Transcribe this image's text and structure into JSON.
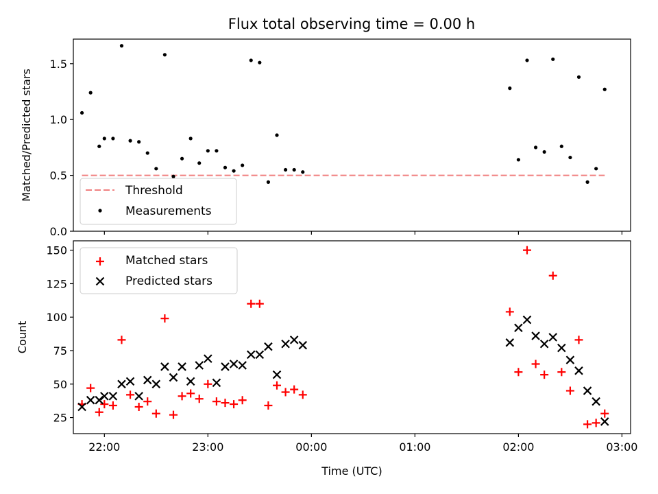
{
  "chart_data": [
    {
      "type": "scatter",
      "title": "Flux total observing time = 0.00 h",
      "ylabel": "Matched/Predicted stars",
      "xlabel": "",
      "ylim": [
        0,
        1.72
      ],
      "yticks": [
        0.0,
        0.5,
        1.0,
        1.5
      ],
      "ytick_labels": [
        "0.0",
        "0.5",
        "1.0",
        "1.5"
      ],
      "xrange": [
        "21:42",
        "03:05"
      ],
      "xticks": [
        "22:00",
        "23:00",
        "00:00",
        "01:00",
        "02:00",
        "03:00"
      ],
      "xtick_labels": [],
      "grid": false,
      "legend_position": "lower-left",
      "threshold": {
        "name": "Threshold",
        "value": 0.5,
        "x_start": "21:47",
        "x_end": "02:50",
        "color": "#f08080",
        "style": "dashed"
      },
      "series": [
        {
          "name": "Measurements",
          "color": "#000000",
          "marker": "dot",
          "points": [
            [
              "21:47",
              1.06
            ],
            [
              "21:52",
              1.24
            ],
            [
              "21:57",
              0.76
            ],
            [
              "22:00",
              0.83
            ],
            [
              "22:05",
              0.83
            ],
            [
              "22:10",
              1.66
            ],
            [
              "22:15",
              0.81
            ],
            [
              "22:20",
              0.8
            ],
            [
              "22:25",
              0.7
            ],
            [
              "22:30",
              0.56
            ],
            [
              "22:35",
              1.58
            ],
            [
              "22:40",
              0.49
            ],
            [
              "22:45",
              0.65
            ],
            [
              "22:50",
              0.83
            ],
            [
              "22:55",
              0.61
            ],
            [
              "23:00",
              0.72
            ],
            [
              "23:05",
              0.72
            ],
            [
              "23:10",
              0.57
            ],
            [
              "23:15",
              0.54
            ],
            [
              "23:20",
              0.59
            ],
            [
              "23:25",
              1.53
            ],
            [
              "23:30",
              1.51
            ],
            [
              "23:35",
              0.44
            ],
            [
              "23:40",
              0.86
            ],
            [
              "23:45",
              0.55
            ],
            [
              "23:50",
              0.55
            ],
            [
              "23:55",
              0.53
            ],
            [
              "01:55",
              1.28
            ],
            [
              "02:00",
              0.64
            ],
            [
              "02:05",
              1.53
            ],
            [
              "02:10",
              0.75
            ],
            [
              "02:15",
              0.71
            ],
            [
              "02:20",
              1.54
            ],
            [
              "02:25",
              0.76
            ],
            [
              "02:30",
              0.66
            ],
            [
              "02:35",
              1.38
            ],
            [
              "02:40",
              0.44
            ],
            [
              "02:45",
              0.56
            ],
            [
              "02:50",
              1.27
            ]
          ]
        }
      ]
    },
    {
      "type": "scatter",
      "title": "",
      "ylabel": "Count",
      "xlabel": "Time (UTC)",
      "ylim": [
        13,
        157
      ],
      "yticks": [
        25,
        50,
        75,
        100,
        125,
        150
      ],
      "ytick_labels": [
        "25",
        "50",
        "75",
        "100",
        "125",
        "150"
      ],
      "xrange": [
        "21:42",
        "03:05"
      ],
      "xticks": [
        "22:00",
        "23:00",
        "00:00",
        "01:00",
        "02:00",
        "03:00"
      ],
      "xtick_labels": [
        "22:00",
        "23:00",
        "00:00",
        "01:00",
        "02:00",
        "03:00"
      ],
      "grid": false,
      "legend_position": "upper-left",
      "series": [
        {
          "name": "Matched stars",
          "color": "#ff0000",
          "marker": "plus",
          "points": [
            [
              "21:47",
              35
            ],
            [
              "21:52",
              47
            ],
            [
              "21:57",
              29
            ],
            [
              "22:00",
              35
            ],
            [
              "22:05",
              34
            ],
            [
              "22:10",
              83
            ],
            [
              "22:15",
              42
            ],
            [
              "22:20",
              33
            ],
            [
              "22:25",
              37
            ],
            [
              "22:30",
              28
            ],
            [
              "22:35",
              99
            ],
            [
              "22:40",
              27
            ],
            [
              "22:45",
              41
            ],
            [
              "22:50",
              43
            ],
            [
              "22:55",
              39
            ],
            [
              "23:00",
              50
            ],
            [
              "23:05",
              37
            ],
            [
              "23:10",
              36
            ],
            [
              "23:15",
              35
            ],
            [
              "23:20",
              38
            ],
            [
              "23:25",
              110
            ],
            [
              "23:30",
              110
            ],
            [
              "23:35",
              34
            ],
            [
              "23:40",
              49
            ],
            [
              "23:45",
              44
            ],
            [
              "23:50",
              46
            ],
            [
              "23:55",
              42
            ],
            [
              "01:55",
              104
            ],
            [
              "02:00",
              59
            ],
            [
              "02:05",
              150
            ],
            [
              "02:10",
              65
            ],
            [
              "02:15",
              57
            ],
            [
              "02:20",
              131
            ],
            [
              "02:25",
              59
            ],
            [
              "02:30",
              45
            ],
            [
              "02:35",
              83
            ],
            [
              "02:40",
              20
            ],
            [
              "02:45",
              21
            ],
            [
              "02:50",
              28
            ]
          ]
        },
        {
          "name": "Predicted stars",
          "color": "#000000",
          "marker": "x",
          "points": [
            [
              "21:47",
              33
            ],
            [
              "21:52",
              38
            ],
            [
              "21:57",
              38
            ],
            [
              "22:00",
              41
            ],
            [
              "22:05",
              41
            ],
            [
              "22:10",
              50
            ],
            [
              "22:15",
              52
            ],
            [
              "22:20",
              41
            ],
            [
              "22:25",
              53
            ],
            [
              "22:30",
              50
            ],
            [
              "22:35",
              63
            ],
            [
              "22:40",
              55
            ],
            [
              "22:45",
              63
            ],
            [
              "22:50",
              52
            ],
            [
              "22:55",
              64
            ],
            [
              "23:00",
              69
            ],
            [
              "23:05",
              51
            ],
            [
              "23:10",
              63
            ],
            [
              "23:15",
              65
            ],
            [
              "23:20",
              64
            ],
            [
              "23:25",
              72
            ],
            [
              "23:30",
              72
            ],
            [
              "23:35",
              78
            ],
            [
              "23:40",
              57
            ],
            [
              "23:45",
              80
            ],
            [
              "23:50",
              83
            ],
            [
              "23:55",
              79
            ],
            [
              "01:55",
              81
            ],
            [
              "02:00",
              92
            ],
            [
              "02:05",
              98
            ],
            [
              "02:10",
              86
            ],
            [
              "02:15",
              80
            ],
            [
              "02:20",
              85
            ],
            [
              "02:25",
              77
            ],
            [
              "02:30",
              68
            ],
            [
              "02:35",
              60
            ],
            [
              "02:40",
              45
            ],
            [
              "02:45",
              37
            ],
            [
              "02:50",
              22
            ]
          ]
        }
      ]
    }
  ]
}
